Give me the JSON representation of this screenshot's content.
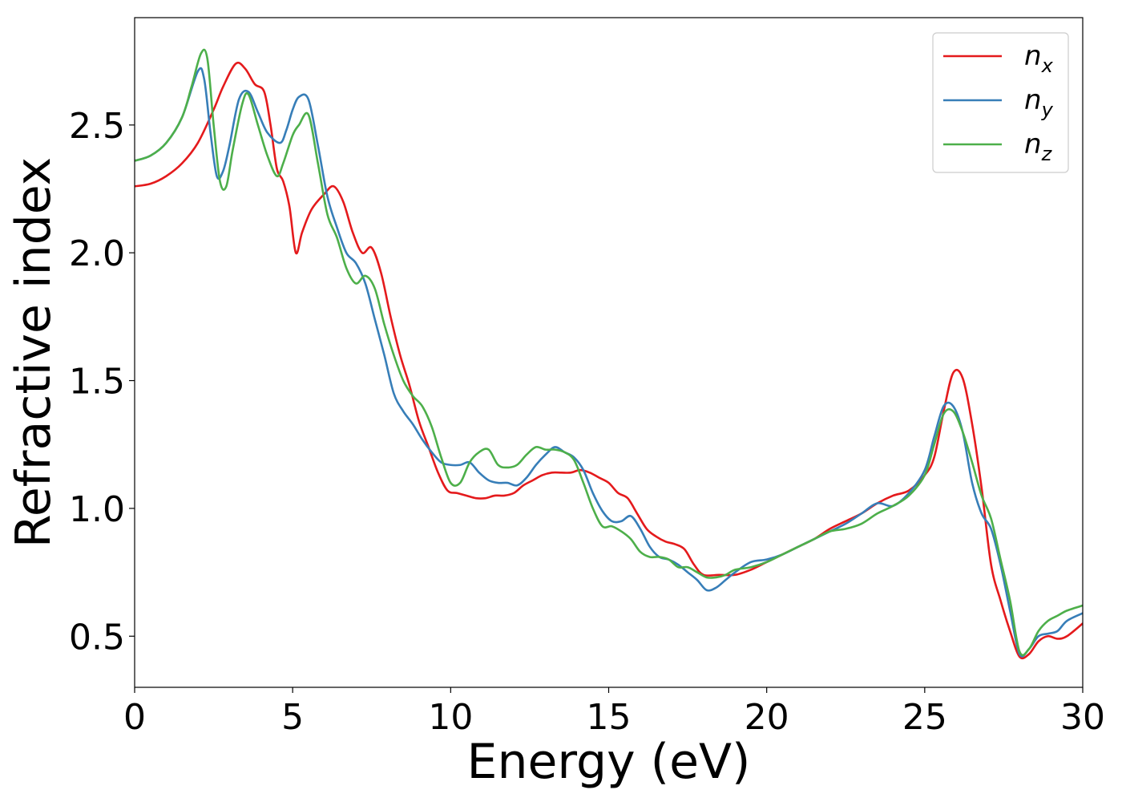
{
  "chart_data": {
    "type": "line",
    "xlabel": "Energy (eV)",
    "ylabel": "Refractive index",
    "xlim": [
      0,
      30
    ],
    "ylim": [
      0.3,
      2.92
    ],
    "xticks": [
      0,
      5,
      10,
      15,
      20,
      25,
      30
    ],
    "xtick_labels": [
      "0",
      "5",
      "10",
      "15",
      "20",
      "25",
      "30"
    ],
    "yticks": [
      0.5,
      1.0,
      1.5,
      2.0,
      2.5
    ],
    "ytick_labels": [
      "0.5",
      "1.0",
      "1.5",
      "2.0",
      "2.5"
    ],
    "grid": false,
    "legend_position": "top-right",
    "series": [
      {
        "name": "n_x",
        "legend_base": "n",
        "legend_sub": "x",
        "color": "#e41a1c",
        "x": [
          0,
          0.5,
          1.0,
          1.5,
          2.0,
          2.5,
          2.8,
          3.2,
          3.5,
          3.8,
          4.1,
          4.3,
          4.5,
          4.7,
          4.9,
          5.1,
          5.3,
          5.6,
          6.0,
          6.3,
          6.6,
          6.9,
          7.2,
          7.5,
          7.8,
          8.1,
          8.4,
          8.7,
          9.0,
          9.3,
          9.6,
          9.9,
          10.2,
          10.5,
          10.8,
          11.1,
          11.4,
          11.7,
          12.0,
          12.3,
          12.6,
          12.9,
          13.2,
          13.5,
          13.8,
          14.1,
          14.4,
          14.7,
          15.0,
          15.3,
          15.6,
          15.9,
          16.2,
          16.5,
          16.8,
          17.1,
          17.4,
          17.7,
          18.0,
          18.5,
          19.0,
          19.5,
          20.0,
          20.5,
          21.0,
          21.5,
          22.0,
          22.5,
          23.0,
          23.5,
          24.0,
          24.5,
          25.0,
          25.3,
          25.6,
          25.9,
          26.2,
          26.5,
          26.8,
          27.1,
          27.4,
          27.7,
          28.0,
          28.3,
          28.6,
          28.9,
          29.2,
          29.5,
          30.0
        ],
        "values": [
          2.26,
          2.27,
          2.3,
          2.35,
          2.43,
          2.56,
          2.65,
          2.74,
          2.72,
          2.66,
          2.63,
          2.5,
          2.33,
          2.28,
          2.18,
          2.0,
          2.08,
          2.17,
          2.23,
          2.26,
          2.2,
          2.08,
          2.0,
          2.02,
          1.92,
          1.75,
          1.6,
          1.48,
          1.34,
          1.24,
          1.14,
          1.07,
          1.06,
          1.05,
          1.04,
          1.04,
          1.05,
          1.05,
          1.06,
          1.09,
          1.11,
          1.13,
          1.14,
          1.14,
          1.14,
          1.15,
          1.14,
          1.12,
          1.1,
          1.06,
          1.04,
          0.98,
          0.92,
          0.89,
          0.87,
          0.86,
          0.84,
          0.78,
          0.74,
          0.74,
          0.74,
          0.76,
          0.79,
          0.82,
          0.85,
          0.88,
          0.92,
          0.95,
          0.98,
          1.02,
          1.05,
          1.07,
          1.13,
          1.2,
          1.38,
          1.53,
          1.51,
          1.33,
          1.08,
          0.78,
          0.64,
          0.52,
          0.42,
          0.43,
          0.48,
          0.5,
          0.49,
          0.5,
          0.55
        ]
      },
      {
        "name": "n_y",
        "legend_base": "n",
        "legend_sub": "y",
        "color": "#377eb8",
        "x": [
          0,
          0.5,
          1.0,
          1.5,
          2.0,
          2.2,
          2.4,
          2.6,
          2.8,
          3.0,
          3.3,
          3.6,
          3.9,
          4.2,
          4.6,
          4.8,
          5.0,
          5.2,
          5.5,
          5.8,
          6.1,
          6.4,
          6.7,
          7.0,
          7.3,
          7.6,
          7.9,
          8.2,
          8.5,
          8.8,
          9.1,
          9.4,
          9.7,
          10.0,
          10.3,
          10.6,
          10.9,
          11.2,
          11.5,
          11.8,
          12.1,
          12.4,
          12.7,
          13.0,
          13.3,
          13.6,
          13.9,
          14.2,
          14.5,
          14.8,
          15.1,
          15.4,
          15.7,
          16.0,
          16.3,
          16.6,
          16.9,
          17.2,
          17.5,
          17.8,
          18.1,
          18.4,
          18.7,
          19.0,
          19.5,
          20.0,
          20.5,
          21.0,
          21.5,
          22.0,
          22.5,
          23.0,
          23.5,
          24.0,
          24.5,
          25.0,
          25.3,
          25.6,
          25.9,
          26.2,
          26.5,
          26.8,
          27.1,
          27.4,
          27.7,
          28.0,
          28.3,
          28.6,
          28.9,
          29.2,
          29.5,
          30.0
        ],
        "values": [
          2.36,
          2.38,
          2.43,
          2.53,
          2.71,
          2.68,
          2.47,
          2.3,
          2.32,
          2.42,
          2.6,
          2.63,
          2.55,
          2.47,
          2.43,
          2.48,
          2.56,
          2.61,
          2.6,
          2.42,
          2.22,
          2.1,
          2.0,
          1.96,
          1.88,
          1.74,
          1.6,
          1.45,
          1.38,
          1.33,
          1.27,
          1.22,
          1.18,
          1.17,
          1.17,
          1.18,
          1.14,
          1.11,
          1.1,
          1.1,
          1.09,
          1.12,
          1.17,
          1.21,
          1.24,
          1.22,
          1.2,
          1.15,
          1.06,
          0.99,
          0.95,
          0.95,
          0.97,
          0.92,
          0.85,
          0.81,
          0.8,
          0.78,
          0.75,
          0.72,
          0.68,
          0.69,
          0.72,
          0.75,
          0.79,
          0.8,
          0.82,
          0.85,
          0.88,
          0.91,
          0.94,
          0.98,
          1.02,
          1.01,
          1.06,
          1.15,
          1.28,
          1.4,
          1.4,
          1.3,
          1.1,
          0.98,
          0.92,
          0.78,
          0.6,
          0.43,
          0.45,
          0.5,
          0.51,
          0.52,
          0.56,
          0.59
        ]
      },
      {
        "name": "n_z",
        "legend_base": "n",
        "legend_sub": "z",
        "color": "#4daf4a",
        "x": [
          0,
          0.5,
          1.0,
          1.5,
          1.8,
          2.1,
          2.3,
          2.5,
          2.7,
          2.9,
          3.1,
          3.4,
          3.6,
          3.9,
          4.2,
          4.5,
          4.7,
          5.0,
          5.2,
          5.5,
          5.8,
          6.1,
          6.4,
          6.7,
          7.0,
          7.3,
          7.6,
          7.9,
          8.2,
          8.5,
          8.8,
          9.1,
          9.4,
          9.7,
          10.0,
          10.3,
          10.6,
          10.9,
          11.2,
          11.5,
          11.8,
          12.1,
          12.4,
          12.7,
          13.0,
          13.3,
          13.6,
          13.9,
          14.2,
          14.5,
          14.8,
          15.1,
          15.4,
          15.7,
          16.0,
          16.3,
          16.6,
          16.9,
          17.2,
          17.5,
          17.8,
          18.1,
          18.4,
          18.7,
          19.0,
          19.5,
          20.0,
          20.5,
          21.0,
          21.5,
          22.0,
          22.5,
          23.0,
          23.5,
          24.0,
          24.5,
          25.0,
          25.3,
          25.6,
          25.9,
          26.2,
          26.5,
          26.8,
          27.1,
          27.4,
          27.7,
          28.0,
          28.3,
          28.6,
          28.9,
          29.2,
          29.5,
          30.0
        ],
        "values": [
          2.36,
          2.38,
          2.43,
          2.53,
          2.65,
          2.78,
          2.76,
          2.5,
          2.28,
          2.26,
          2.4,
          2.58,
          2.62,
          2.5,
          2.38,
          2.3,
          2.35,
          2.46,
          2.5,
          2.54,
          2.35,
          2.15,
          2.06,
          1.94,
          1.88,
          1.91,
          1.86,
          1.72,
          1.6,
          1.5,
          1.44,
          1.4,
          1.32,
          1.2,
          1.1,
          1.1,
          1.18,
          1.22,
          1.23,
          1.17,
          1.16,
          1.17,
          1.21,
          1.24,
          1.23,
          1.23,
          1.22,
          1.19,
          1.1,
          1.0,
          0.93,
          0.93,
          0.91,
          0.88,
          0.83,
          0.81,
          0.81,
          0.8,
          0.77,
          0.77,
          0.75,
          0.73,
          0.73,
          0.74,
          0.76,
          0.77,
          0.79,
          0.82,
          0.85,
          0.88,
          0.91,
          0.92,
          0.94,
          0.98,
          1.01,
          1.05,
          1.13,
          1.25,
          1.37,
          1.38,
          1.3,
          1.18,
          1.05,
          0.96,
          0.8,
          0.64,
          0.44,
          0.45,
          0.52,
          0.56,
          0.58,
          0.6,
          0.62
        ]
      }
    ]
  }
}
